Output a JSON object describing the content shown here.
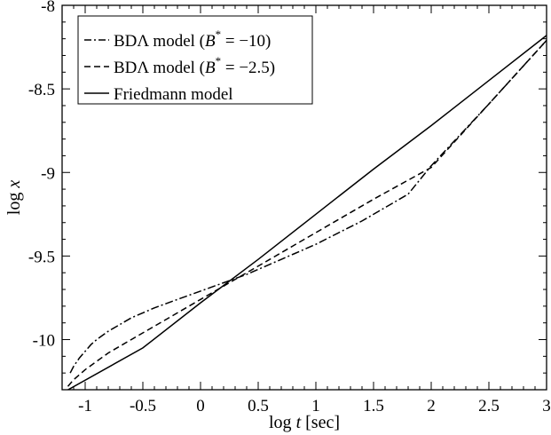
{
  "chart_data": {
    "type": "line",
    "xlabel": {
      "prefix": "log ",
      "var": "t",
      "suffix": " [sec]"
    },
    "ylabel": {
      "prefix": "log ",
      "var": "x"
    },
    "xlim": [
      -1.2,
      3.0
    ],
    "ylim": [
      -10.3,
      -8.0
    ],
    "x_ticks": [
      -1,
      -0.5,
      0,
      0.5,
      1,
      1.5,
      2,
      2.5,
      3
    ],
    "x_tick_labels": [
      "-1",
      "-0.5",
      "0",
      "0.5",
      "1",
      "1.5",
      "2",
      "2.5",
      "3"
    ],
    "y_ticks": [
      -10,
      -9.5,
      -9,
      -8.5,
      -8
    ],
    "y_tick_labels": [
      "-10",
      "-9.5",
      "-9",
      "-8.5",
      "-8"
    ],
    "legend_position": "top-left",
    "grid": false,
    "series": [
      {
        "name": "BDΛ model (B* = −10)",
        "legend_parts": {
          "pre": "BDΛ model (",
          "var": "B",
          "sup": "*",
          "post": " = −10)"
        },
        "dash": "dashdot",
        "x": [
          -1.13,
          -1.1,
          -1.05,
          -1.0,
          -0.95,
          -0.9,
          -0.8,
          -0.7,
          -0.6,
          -0.5,
          -0.4,
          -0.2,
          0.0,
          0.2,
          0.4,
          0.6,
          0.8,
          1.0,
          1.2,
          1.4,
          1.6,
          1.8,
          2.0,
          2.5,
          3.0
        ],
        "y": [
          -10.2,
          -10.16,
          -10.11,
          -10.07,
          -10.03,
          -10.0,
          -9.95,
          -9.91,
          -9.87,
          -9.84,
          -9.81,
          -9.76,
          -9.71,
          -9.66,
          -9.61,
          -9.55,
          -9.49,
          -9.43,
          -9.36,
          -9.29,
          -9.21,
          -9.13,
          -8.96,
          -8.59,
          -8.21
        ]
      },
      {
        "name": "BDΛ model (B* = −2.5)",
        "legend_parts": {
          "pre": "BDΛ model (",
          "var": "B",
          "sup": "*",
          "post": " = −2.5)"
        },
        "dash": "dashed",
        "x": [
          -1.15,
          -1.1,
          -1.05,
          -1.0,
          -0.9,
          -0.8,
          -0.6,
          -0.4,
          -0.2,
          0.0,
          0.2,
          0.4,
          0.6,
          0.8,
          1.0,
          1.5,
          2.0,
          2.5,
          3.0
        ],
        "y": [
          -10.28,
          -10.24,
          -10.21,
          -10.18,
          -10.13,
          -10.08,
          -10.0,
          -9.92,
          -9.84,
          -9.76,
          -9.68,
          -9.6,
          -9.52,
          -9.44,
          -9.36,
          -9.16,
          -8.97,
          -8.59,
          -8.21
        ]
      },
      {
        "name": "Friedmann model",
        "legend_parts": {
          "pre": "Friedmann model",
          "var": "",
          "sup": "",
          "post": ""
        },
        "dash": "solid",
        "x": [
          -1.2,
          -0.5,
          0.0,
          0.5,
          1.0,
          1.5,
          2.0,
          2.5,
          3.0
        ],
        "y": [
          -10.32,
          -10.05,
          -9.78,
          -9.52,
          -9.25,
          -8.98,
          -8.72,
          -8.45,
          -8.18
        ]
      }
    ]
  }
}
